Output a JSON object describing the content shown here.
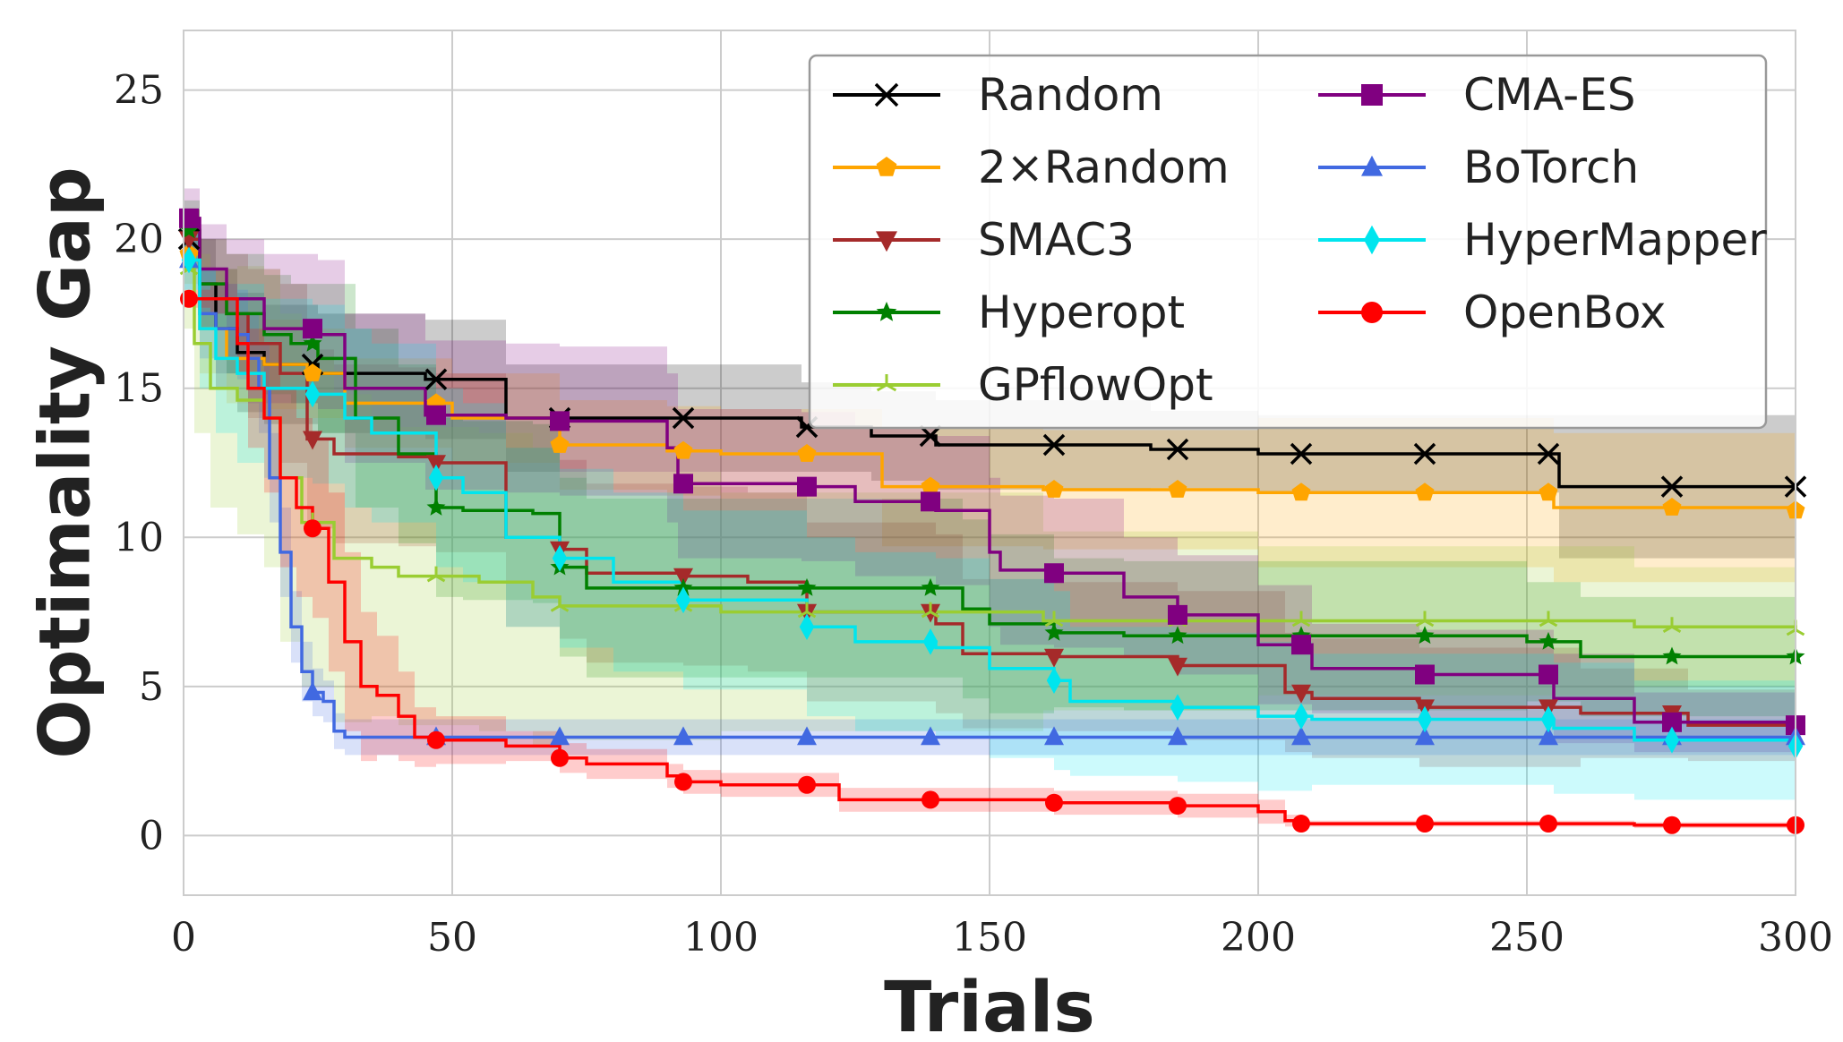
{
  "chart_data": {
    "type": "line",
    "xlabel": "Trials",
    "ylabel": "Optimality Gap",
    "xlim": [
      0,
      300
    ],
    "ylim": [
      -2,
      27
    ],
    "xticks": [
      0,
      50,
      100,
      150,
      200,
      250,
      300
    ],
    "yticks": [
      0,
      5,
      10,
      15,
      20,
      25
    ],
    "grid": true,
    "legend_position": "top-right",
    "series": [
      {
        "name": "Random",
        "color": "#000000",
        "marker": "x",
        "x": [
          0,
          3,
          6,
          10,
          15,
          25,
          45,
          60,
          70,
          100,
          115,
          128,
          140,
          160,
          180,
          200,
          256,
          270,
          300
        ],
        "y": [
          20.0,
          18.5,
          17.0,
          16.2,
          15.8,
          15.5,
          15.3,
          14.0,
          14.0,
          14.0,
          13.7,
          13.4,
          13.1,
          13.1,
          12.95,
          12.8,
          11.7,
          11.7,
          11.7
        ],
        "band": [
          1.0,
          1.5,
          2.0,
          2.0,
          2.0,
          2.0,
          2.0,
          1.8,
          1.8,
          1.8,
          1.5,
          1.5,
          1.5,
          1.5,
          1.3,
          1.3,
          2.4,
          2.4,
          2.4
        ]
      },
      {
        "name": "2×Random",
        "color": "#ffa500",
        "marker": "pentagon",
        "x": [
          0,
          3,
          8,
          15,
          23,
          30,
          50,
          70,
          90,
          100,
          127,
          130,
          160,
          200,
          250,
          255,
          300
        ],
        "y": [
          19.5,
          17.0,
          16.0,
          15.8,
          15.5,
          14.5,
          14.0,
          13.1,
          12.9,
          12.8,
          12.8,
          11.7,
          11.6,
          11.5,
          11.5,
          11.0,
          10.9
        ],
        "band": [
          1.0,
          1.5,
          1.5,
          1.5,
          1.5,
          1.5,
          1.5,
          1.5,
          1.5,
          1.5,
          1.5,
          2.0,
          2.0,
          2.5,
          2.5,
          2.5,
          2.5
        ]
      },
      {
        "name": "SMAC3",
        "color": "#a52a2a",
        "marker": "triangle-down",
        "x": [
          0,
          3,
          8,
          12,
          18,
          23,
          28,
          40,
          47,
          60,
          70,
          75,
          93,
          105,
          116,
          140,
          145,
          162,
          185,
          205,
          210,
          230,
          260,
          280,
          300
        ],
        "y": [
          20.0,
          18.5,
          17.5,
          16.5,
          15.5,
          13.3,
          12.8,
          12.7,
          12.5,
          10.0,
          9.6,
          8.8,
          8.7,
          8.5,
          7.5,
          7.1,
          6.1,
          6.0,
          5.7,
          4.8,
          4.6,
          4.3,
          4.1,
          3.7,
          3.7
        ],
        "band": [
          1.0,
          1.5,
          2.0,
          2.5,
          3.0,
          3.0,
          3.0,
          3.0,
          3.0,
          3.0,
          3.0,
          3.0,
          3.0,
          3.0,
          3.0,
          3.0,
          2.5,
          2.5,
          2.5,
          2.0,
          2.0,
          2.0,
          1.5,
          1.2,
          1.2
        ]
      },
      {
        "name": "Hyperopt",
        "color": "#008000",
        "marker": "star",
        "x": [
          0,
          3,
          8,
          15,
          20,
          25,
          32,
          40,
          47,
          52,
          65,
          70,
          75,
          140,
          145,
          150,
          162,
          175,
          200,
          250,
          260,
          300
        ],
        "y": [
          20.3,
          18.5,
          17.5,
          16.8,
          16.5,
          16.0,
          14.0,
          12.8,
          11.0,
          10.9,
          10.8,
          9.0,
          8.3,
          8.3,
          7.6,
          7.1,
          6.8,
          6.7,
          6.7,
          6.5,
          6.0,
          6.0
        ],
        "band": [
          1.0,
          1.5,
          2.0,
          2.0,
          2.0,
          2.5,
          3.0,
          3.0,
          3.0,
          3.0,
          3.0,
          3.0,
          3.0,
          3.0,
          3.0,
          3.0,
          2.5,
          2.5,
          2.5,
          2.0,
          2.0,
          2.0
        ]
      },
      {
        "name": "GPflowOpt",
        "color": "#9acd32",
        "marker": "tri",
        "x": [
          0,
          2,
          5,
          10,
          15,
          18,
          22,
          28,
          35,
          40,
          50,
          55,
          65,
          70,
          100,
          160,
          200,
          270,
          300
        ],
        "y": [
          19.0,
          16.5,
          15.0,
          14.6,
          14.0,
          12.0,
          10.5,
          9.3,
          9.0,
          8.7,
          8.7,
          8.5,
          8.0,
          7.7,
          7.5,
          7.2,
          7.2,
          7.0,
          6.9
        ],
        "band": [
          2.0,
          3.0,
          4.0,
          4.5,
          5.0,
          5.5,
          5.5,
          5.5,
          5.0,
          5.0,
          5.0,
          5.0,
          5.0,
          4.5,
          4.0,
          3.0,
          2.5,
          2.0,
          2.0
        ]
      },
      {
        "name": "CMA-ES",
        "color": "#800080",
        "marker": "square",
        "x": [
          0,
          3,
          8,
          15,
          25,
          30,
          45,
          60,
          70,
          90,
          92,
          115,
          125,
          140,
          150,
          152,
          162,
          175,
          185,
          200,
          210,
          230,
          255,
          270,
          300
        ],
        "y": [
          20.7,
          19.0,
          18.0,
          17.0,
          16.8,
          15.0,
          14.1,
          14.0,
          13.9,
          13.0,
          11.8,
          11.7,
          11.2,
          10.9,
          9.5,
          8.9,
          8.8,
          8.0,
          7.4,
          6.4,
          5.6,
          5.4,
          4.6,
          3.8,
          3.7
        ],
        "band": [
          1.0,
          1.5,
          2.0,
          2.5,
          2.5,
          2.5,
          2.5,
          2.5,
          2.5,
          2.5,
          2.5,
          2.5,
          2.5,
          2.5,
          2.5,
          2.5,
          2.5,
          2.0,
          2.0,
          2.0,
          1.5,
          1.5,
          1.5,
          1.0,
          1.0
        ]
      },
      {
        "name": "BoTorch",
        "color": "#4169e1",
        "marker": "triangle-up",
        "x": [
          0,
          3,
          6,
          10,
          12,
          14,
          16,
          18,
          20,
          22,
          24,
          26,
          28,
          30,
          40,
          100,
          200,
          300
        ],
        "y": [
          19.3,
          17.5,
          17.0,
          16.8,
          16.0,
          15.0,
          12.0,
          9.5,
          7.0,
          5.5,
          4.8,
          4.5,
          3.5,
          3.3,
          3.3,
          3.3,
          3.3,
          3.3
        ],
        "band": [
          1.0,
          1.5,
          1.5,
          1.5,
          1.5,
          1.5,
          1.5,
          1.5,
          1.2,
          1.0,
          0.8,
          0.7,
          0.6,
          0.6,
          0.6,
          0.6,
          0.6,
          0.5
        ]
      },
      {
        "name": "HyperMapper",
        "color": "#00e5ee",
        "marker": "diamond",
        "x": [
          0,
          3,
          6,
          10,
          15,
          20,
          24,
          30,
          35,
          47,
          52,
          60,
          70,
          80,
          93,
          116,
          125,
          140,
          150,
          162,
          165,
          185,
          200,
          210,
          255,
          270,
          300
        ],
        "y": [
          19.3,
          17.0,
          16.0,
          15.5,
          15.0,
          15.0,
          14.8,
          14.0,
          13.5,
          12.0,
          11.5,
          10.0,
          9.3,
          8.5,
          7.9,
          7.0,
          6.5,
          6.3,
          5.6,
          5.2,
          4.5,
          4.3,
          4.0,
          3.9,
          3.6,
          3.2,
          3.0
        ],
        "band": [
          1.0,
          2.0,
          2.5,
          3.0,
          3.0,
          3.0,
          3.0,
          3.0,
          3.0,
          3.0,
          3.0,
          3.0,
          3.0,
          3.0,
          3.0,
          3.0,
          3.0,
          3.0,
          3.0,
          3.0,
          2.5,
          2.5,
          2.5,
          2.2,
          2.2,
          2.0,
          2.0
        ]
      },
      {
        "name": "OpenBox",
        "color": "#ff0000",
        "marker": "circle",
        "x": [
          0,
          5,
          10,
          12,
          15,
          18,
          21,
          24,
          27,
          30,
          33,
          36,
          40,
          43,
          47,
          60,
          70,
          75,
          90,
          93,
          100,
          116,
          122,
          140,
          162,
          185,
          200,
          205,
          208,
          260,
          270,
          300
        ],
        "y": [
          18.0,
          18.0,
          16.5,
          15.0,
          14.0,
          12.0,
          11.0,
          10.3,
          8.5,
          6.5,
          5.0,
          4.7,
          4.0,
          3.3,
          3.2,
          3.0,
          2.6,
          2.4,
          2.0,
          1.8,
          1.7,
          1.7,
          1.2,
          1.2,
          1.1,
          1.0,
          0.8,
          0.5,
          0.4,
          0.4,
          0.35,
          0.35
        ],
        "band": [
          0.3,
          0.5,
          1.0,
          2.0,
          2.5,
          3.0,
          3.0,
          3.0,
          3.0,
          3.0,
          2.5,
          2.0,
          1.5,
          1.0,
          0.8,
          0.5,
          0.5,
          0.5,
          0.4,
          0.4,
          0.4,
          0.4,
          0.4,
          0.4,
          0.4,
          0.4,
          0.4,
          0.2,
          0.1,
          0.1,
          0.1,
          0.1
        ]
      }
    ]
  }
}
